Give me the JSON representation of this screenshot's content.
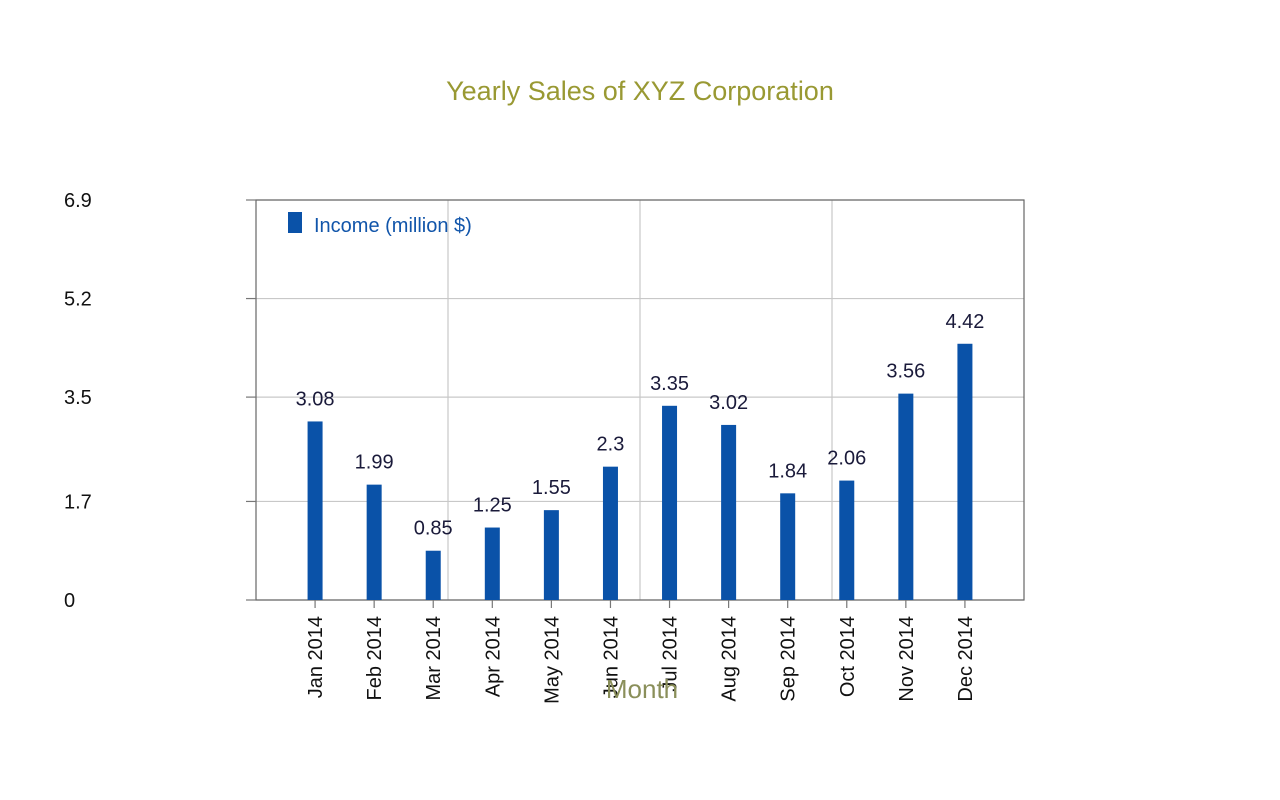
{
  "chart_data": {
    "type": "bar",
    "title": "Yearly Sales of XYZ Corporation",
    "xlabel": "Month",
    "ylabel": "",
    "categories": [
      "Jan 2014",
      "Feb 2014",
      "Mar 2014",
      "Apr 2014",
      "May 2014",
      "Jun 2014",
      "Jul 2014",
      "Aug 2014",
      "Sep 2014",
      "Oct 2014",
      "Nov 2014",
      "Dec 2014"
    ],
    "series": [
      {
        "name": "Income (million $)",
        "values": [
          3.08,
          1.99,
          0.85,
          1.25,
          1.55,
          2.3,
          3.35,
          3.02,
          1.84,
          2.06,
          3.56,
          4.42
        ],
        "color": "#0a52a8"
      }
    ],
    "yticks": [
      "0",
      "1.7",
      "3.5",
      "5.2",
      "6.9"
    ],
    "ylim": [
      0,
      6.9
    ],
    "grid": true,
    "legend_position": "top-left"
  }
}
